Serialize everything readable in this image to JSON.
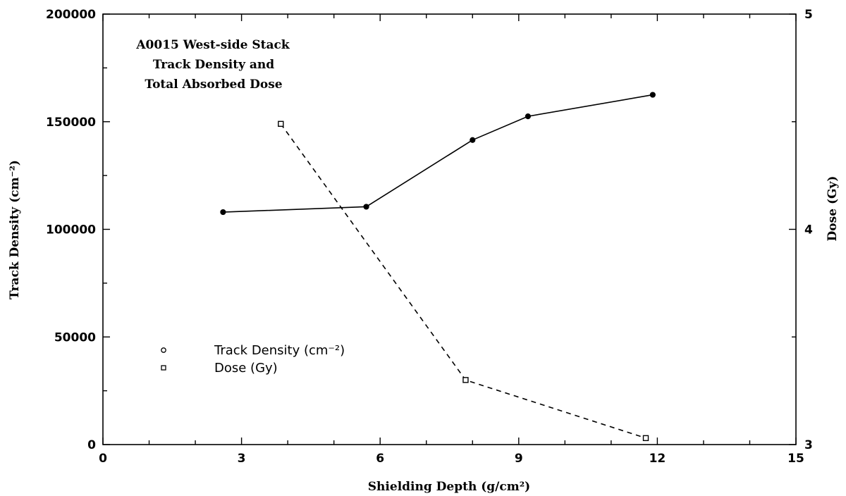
{
  "chart_data": {
    "type": "line",
    "title_lines": [
      "A0015 West-side Stack",
      "Track Density and",
      "Total Absorbed Dose"
    ],
    "xlabel": "Shielding Depth (g/cm²)",
    "ylabel": "Track Density (cm⁻²)",
    "y2label": "Dose (Gy)",
    "xlim": [
      0,
      15
    ],
    "ylim": [
      0,
      200000
    ],
    "y2lim": [
      3,
      5
    ],
    "x_ticks": [
      0,
      3,
      6,
      9,
      12,
      15
    ],
    "y_ticks": [
      0,
      50000,
      100000,
      150000,
      200000
    ],
    "y2_ticks": [
      3,
      4,
      5
    ],
    "grid": false,
    "legend_placement": "lower-left",
    "series": [
      {
        "name": "Track Density (cm⁻²)",
        "axis": "left",
        "marker": "circle",
        "line_style": "solid",
        "x": [
          2.6,
          5.7,
          8.0,
          9.2,
          11.9
        ],
        "y": [
          108000,
          110500,
          141500,
          152500,
          162500
        ]
      },
      {
        "name": "Dose (Gy)",
        "axis": "right",
        "marker": "square",
        "line_style": "dashed",
        "x": [
          3.85,
          7.85,
          11.75
        ],
        "y": [
          4.49,
          3.3,
          3.03
        ]
      }
    ]
  }
}
